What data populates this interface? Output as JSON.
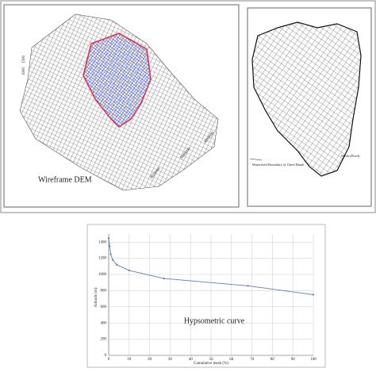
{
  "panels": {
    "dem": {
      "label": "Wireframe DEM",
      "altitude_labels": [
        "1500",
        "1000"
      ],
      "coordinate_labels": [
        "3860000",
        "3840000",
        "3820000"
      ]
    },
    "mesh": {
      "boundary_label": "Watershed Boundary of Oued Hatab",
      "mesh_label": "Mesh (Pixel)"
    }
  },
  "chart_data": {
    "type": "line",
    "title": "Hypsometric curve",
    "x_label": "Cumulative mesh (%)",
    "y_label": "Altitude (m)",
    "x": [
      0,
      0.5,
      1,
      2,
      4,
      10,
      27,
      68,
      100
    ],
    "series": [
      {
        "name": "Hypsometric curve",
        "color": "#5b7fb8",
        "values": [
          1450,
          1350,
          1250,
          1180,
          1120,
          1050,
          950,
          860,
          750
        ]
      }
    ],
    "xlim": [
      0,
      100
    ],
    "ylim": [
      0,
      1500
    ],
    "xticks": [
      0,
      10,
      20,
      30,
      40,
      50,
      60,
      70,
      80,
      90,
      100
    ],
    "yticks": [
      0,
      200,
      400,
      600,
      800,
      1000,
      1200,
      1400
    ],
    "grid": true
  }
}
